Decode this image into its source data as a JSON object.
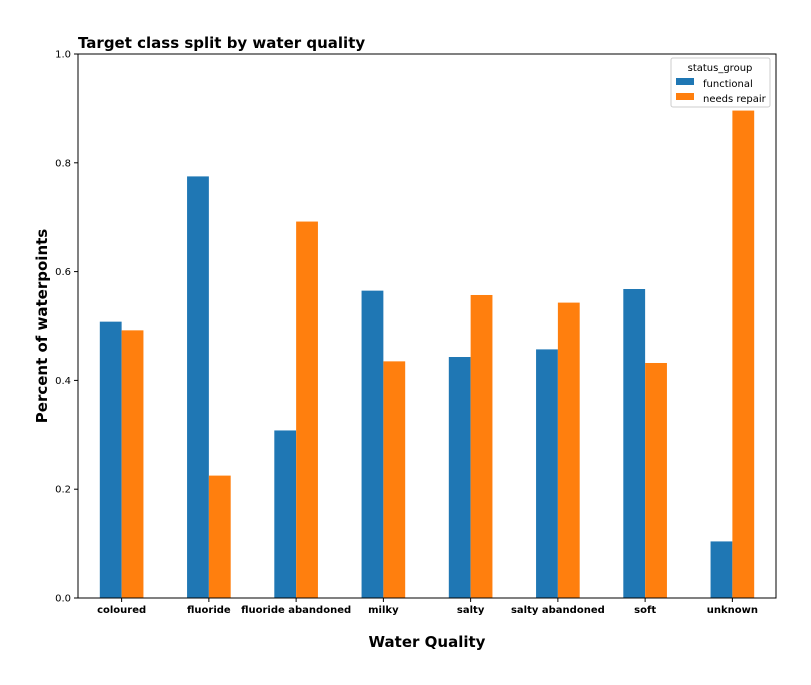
{
  "chart_data": {
    "type": "bar",
    "title": "Target class split by water quality",
    "xlabel": "Water Quality",
    "ylabel": "Percent of waterpoints",
    "categories": [
      "coloured",
      "fluoride",
      "fluoride abandoned",
      "milky",
      "salty",
      "salty abandoned",
      "soft",
      "unknown"
    ],
    "series": [
      {
        "name": "functional",
        "color": "#1f77b4",
        "values": [
          0.508,
          0.775,
          0.308,
          0.565,
          0.443,
          0.457,
          0.568,
          0.104
        ]
      },
      {
        "name": "needs repair",
        "color": "#ff7f0e",
        "values": [
          0.492,
          0.225,
          0.692,
          0.435,
          0.557,
          0.543,
          0.432,
          0.896
        ]
      }
    ],
    "ylim": [
      0,
      1.0
    ],
    "yticks": [
      "0.0",
      "0.2",
      "0.4",
      "0.6",
      "0.8",
      "1.0"
    ],
    "legend": {
      "title": "status_group",
      "position": "top-right"
    },
    "grid": false
  }
}
